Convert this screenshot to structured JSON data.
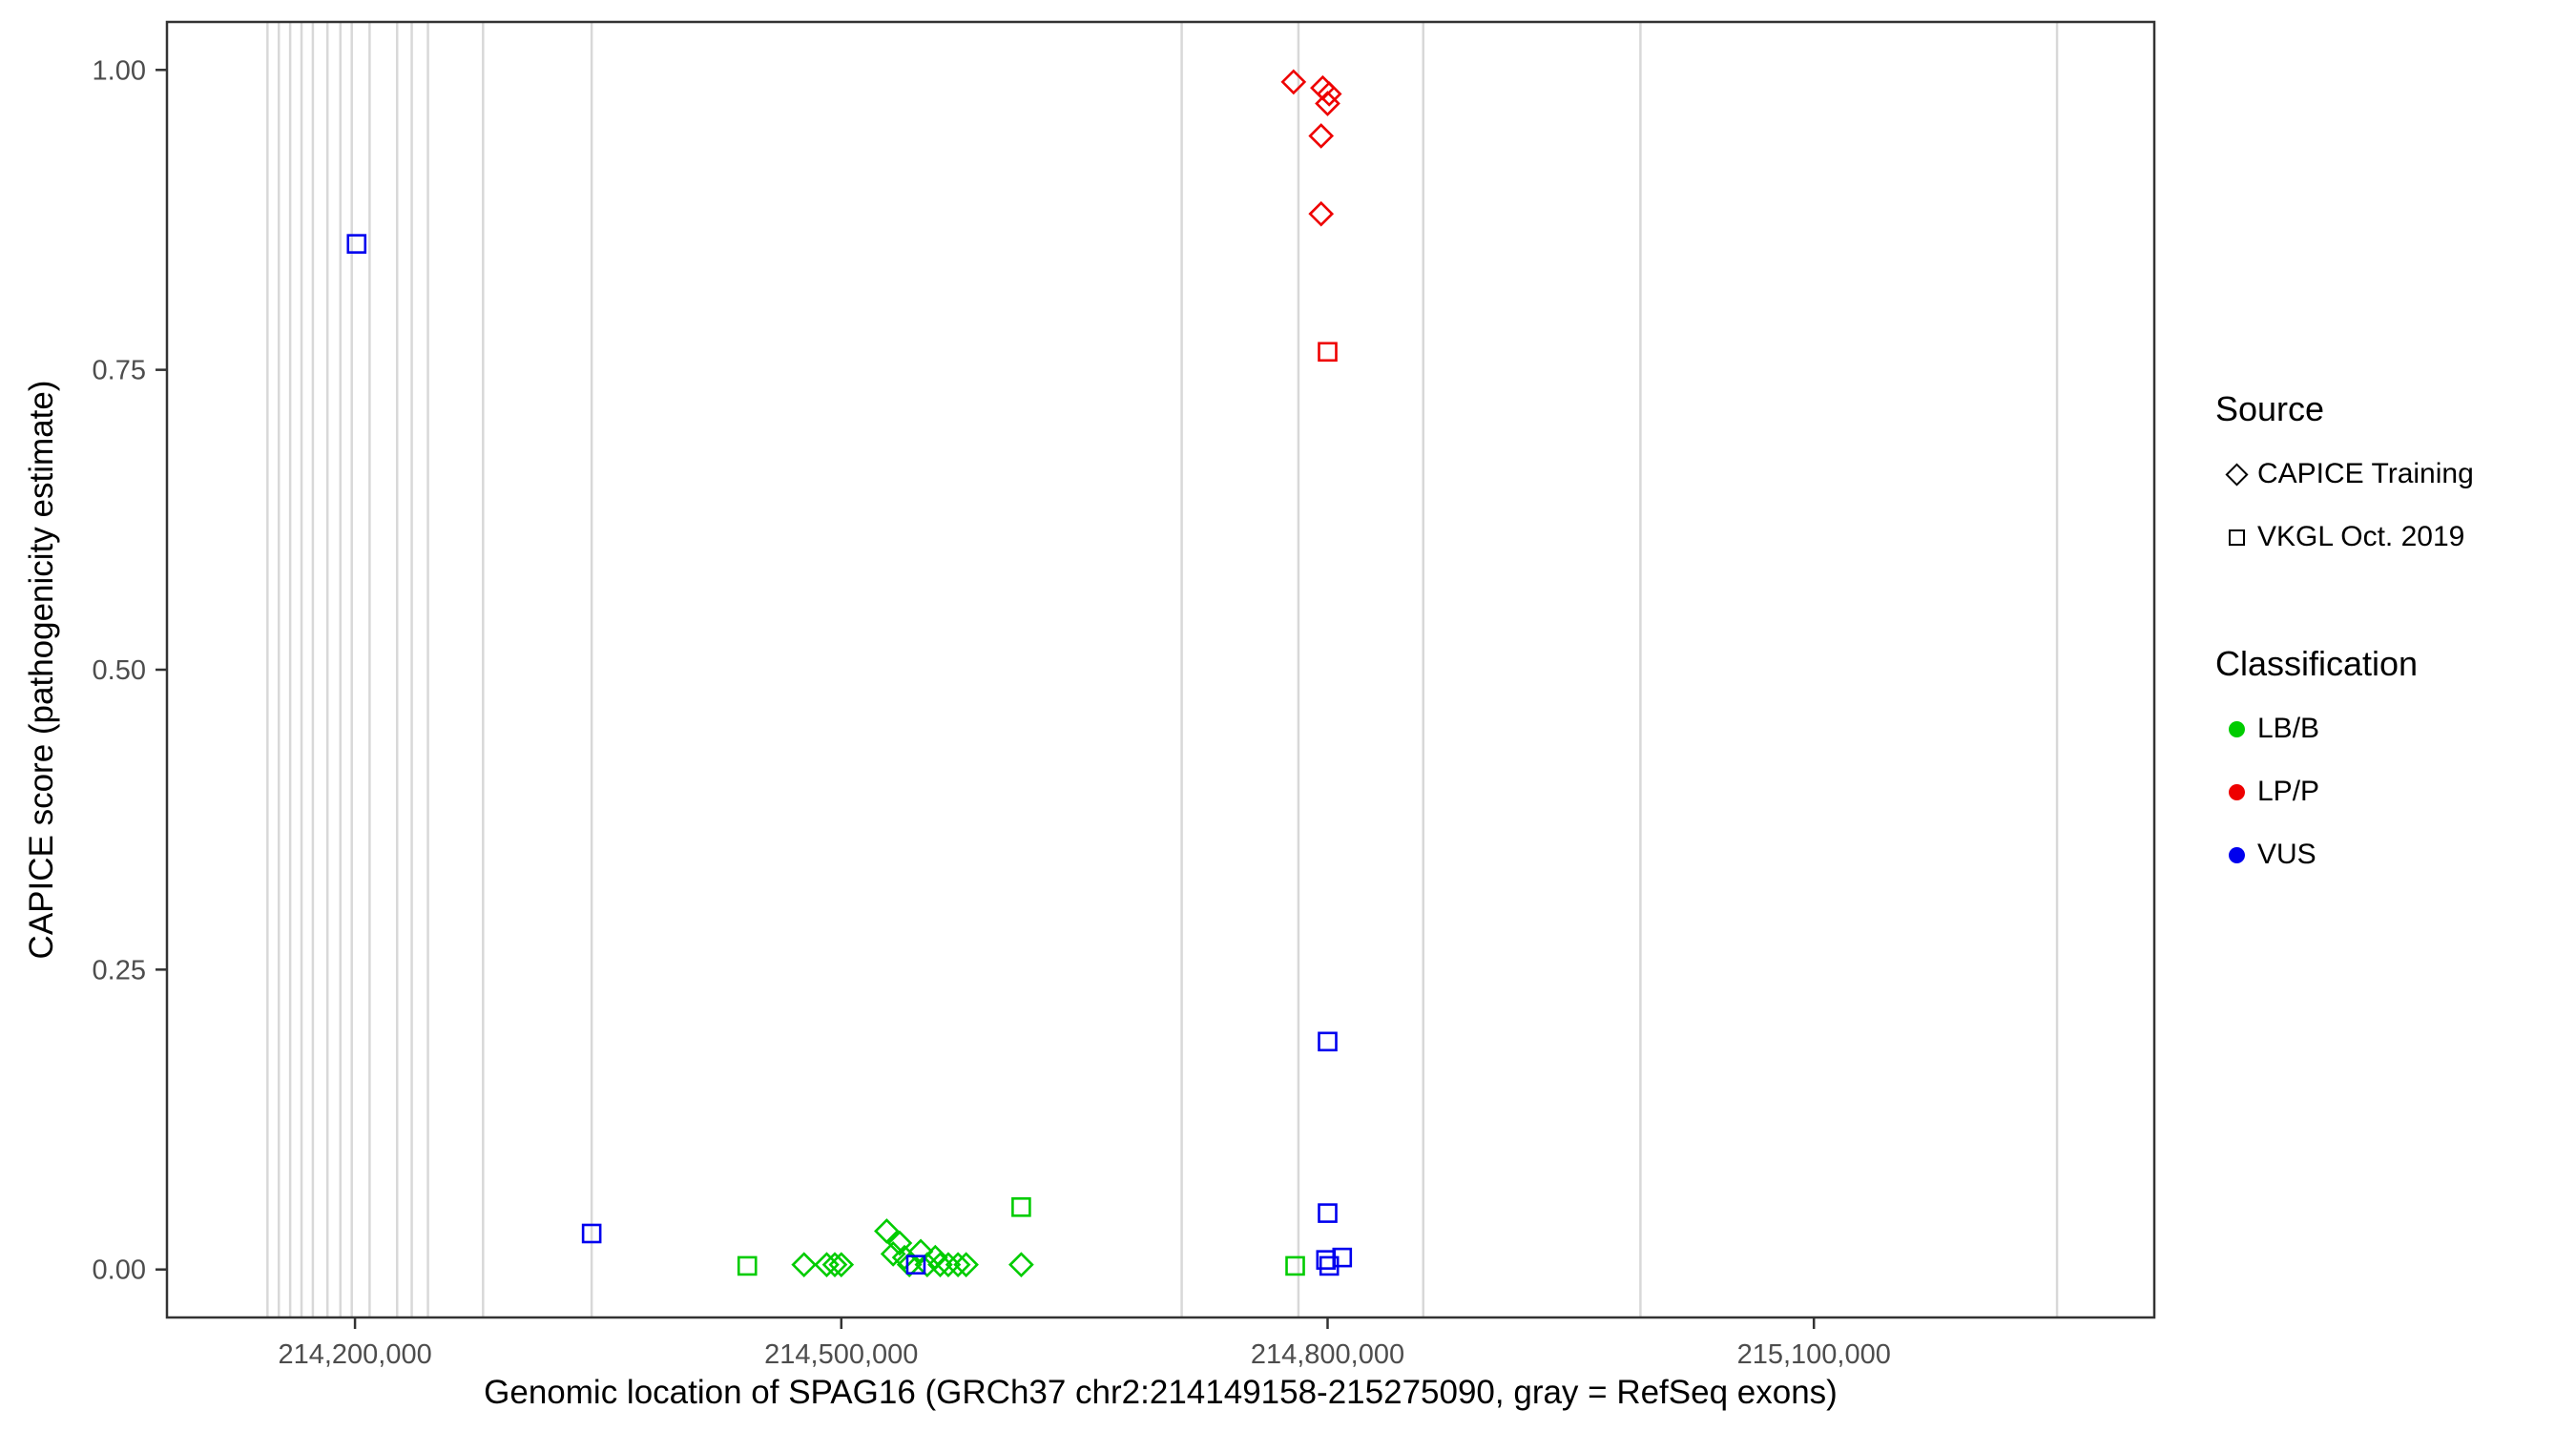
{
  "legend": {
    "source": {
      "title": "Source",
      "items": [
        {
          "label": "CAPICE Training",
          "shape": "diamond"
        },
        {
          "label": "VKGL Oct. 2019",
          "shape": "square"
        }
      ]
    },
    "classification": {
      "title": "Classification",
      "items": [
        {
          "label": "LB/B",
          "color": "#00CC00"
        },
        {
          "label": "LP/P",
          "color": "#EE0000"
        },
        {
          "label": "VUS",
          "color": "#0000EE"
        }
      ]
    }
  },
  "chart_data": {
    "type": "scatter",
    "title": "",
    "xlabel": "Genomic location of SPAG16 (GRCh37 chr2:214149158-215275090, gray = RefSeq exons)",
    "ylabel": "CAPICE score (pathogenicity estimate)",
    "xlim": [
      214084000,
      215310000
    ],
    "ylim": [
      -0.04,
      1.04
    ],
    "grid": false,
    "legend_position": "right",
    "x_ticks": [
      {
        "value": 214200000,
        "label": "214,200,000"
      },
      {
        "value": 214500000,
        "label": "214,500,000"
      },
      {
        "value": 214800000,
        "label": "214,800,000"
      },
      {
        "value": 215100000,
        "label": "215,100,000"
      }
    ],
    "y_ticks": [
      {
        "value": 0.0,
        "label": "0.00"
      },
      {
        "value": 0.25,
        "label": "0.25"
      },
      {
        "value": 0.5,
        "label": "0.50"
      },
      {
        "value": 0.75,
        "label": "0.75"
      },
      {
        "value": 1.0,
        "label": "1.00"
      }
    ],
    "exon_color": "#d8d8d8",
    "refseq_exon_positions": [
      214146000,
      214153000,
      214160000,
      214167000,
      214174000,
      214183000,
      214191000,
      214198000,
      214209000,
      214226000,
      214235000,
      214245000,
      214279000,
      214346000,
      214710000,
      214782000,
      214859000,
      214993000,
      215250000
    ],
    "series": [
      {
        "name": "LB/B - CAPICE Training",
        "classification": "LB/B",
        "source": "CAPICE Training",
        "shape": "diamond",
        "color": "#00CC00",
        "points": [
          {
            "x": 214477000,
            "y": 0.004
          },
          {
            "x": 214491000,
            "y": 0.004
          },
          {
            "x": 214496000,
            "y": 0.004
          },
          {
            "x": 214500000,
            "y": 0.004
          },
          {
            "x": 214528000,
            "y": 0.032
          },
          {
            "x": 214532000,
            "y": 0.013
          },
          {
            "x": 214536000,
            "y": 0.022
          },
          {
            "x": 214539000,
            "y": 0.01
          },
          {
            "x": 214542000,
            "y": 0.004
          },
          {
            "x": 214549000,
            "y": 0.015
          },
          {
            "x": 214553000,
            "y": 0.004
          },
          {
            "x": 214558000,
            "y": 0.01
          },
          {
            "x": 214561000,
            "y": 0.004
          },
          {
            "x": 214566000,
            "y": 0.004
          },
          {
            "x": 214572000,
            "y": 0.004
          },
          {
            "x": 214577000,
            "y": 0.004
          },
          {
            "x": 214611000,
            "y": 0.004
          }
        ]
      },
      {
        "name": "LB/B - VKGL Oct. 2019",
        "classification": "LB/B",
        "source": "VKGL Oct. 2019",
        "shape": "square",
        "color": "#00CC00",
        "points": [
          {
            "x": 214442000,
            "y": 0.003
          },
          {
            "x": 214611000,
            "y": 0.052
          },
          {
            "x": 214780000,
            "y": 0.003
          }
        ]
      },
      {
        "name": "LP/P - CAPICE Training",
        "classification": "LP/P",
        "source": "CAPICE Training",
        "shape": "diamond",
        "color": "#EE0000",
        "points": [
          {
            "x": 214779000,
            "y": 0.99
          },
          {
            "x": 214797000,
            "y": 0.985
          },
          {
            "x": 214801000,
            "y": 0.98
          },
          {
            "x": 214800000,
            "y": 0.972
          },
          {
            "x": 214796000,
            "y": 0.945
          },
          {
            "x": 214796000,
            "y": 0.88
          }
        ]
      },
      {
        "name": "LP/P - VKGL Oct. 2019",
        "classification": "LP/P",
        "source": "VKGL Oct. 2019",
        "shape": "square",
        "color": "#EE0000",
        "points": [
          {
            "x": 214800000,
            "y": 0.765
          }
        ]
      },
      {
        "name": "VUS - VKGL Oct. 2019",
        "classification": "VUS",
        "source": "VKGL Oct. 2019",
        "shape": "square",
        "color": "#0000EE",
        "points": [
          {
            "x": 214201000,
            "y": 0.855
          },
          {
            "x": 214346000,
            "y": 0.03
          },
          {
            "x": 214546000,
            "y": 0.004
          },
          {
            "x": 214800000,
            "y": 0.19
          },
          {
            "x": 214800000,
            "y": 0.047
          },
          {
            "x": 214799000,
            "y": 0.008
          },
          {
            "x": 214801000,
            "y": 0.003
          },
          {
            "x": 214809000,
            "y": 0.01
          }
        ]
      }
    ]
  }
}
